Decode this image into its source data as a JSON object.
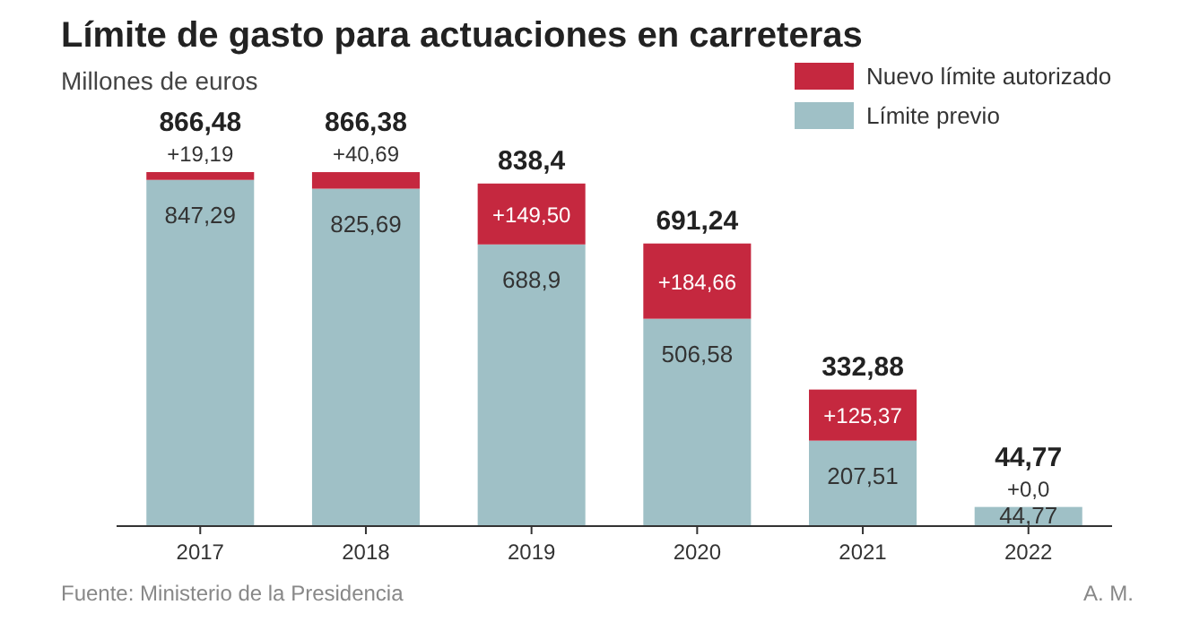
{
  "chart_data": {
    "type": "bar",
    "title": "Límite de gasto para actuaciones en carreteras",
    "subtitle": "Millones de euros",
    "categories": [
      "2017",
      "2018",
      "2019",
      "2020",
      "2021",
      "2022"
    ],
    "stacked": true,
    "legend": "top right",
    "series": [
      {
        "name": "Límite previo",
        "color": "#9fc0c6",
        "values": [
          847.29,
          825.69,
          688.9,
          506.58,
          207.51,
          44.77
        ],
        "value_labels": [
          "847,29",
          "825,69",
          "688,9",
          "506,58",
          "207,51",
          "44,77"
        ]
      },
      {
        "name": "Nuevo límite autorizado",
        "color": "#c5283f",
        "values": [
          19.19,
          40.69,
          149.5,
          184.66,
          125.37,
          0
        ],
        "value_labels": [
          "+19,19",
          "+40,69",
          "+149,50",
          "+184,66",
          "+125,37",
          "+0,0"
        ]
      }
    ],
    "totals": [
      "866,48",
      "866,38",
      "838,4",
      "691,24",
      "332,88",
      "44,77"
    ],
    "annotations": [
      "Fuente: Ministerio de la Presidencia",
      "A. M."
    ]
  }
}
